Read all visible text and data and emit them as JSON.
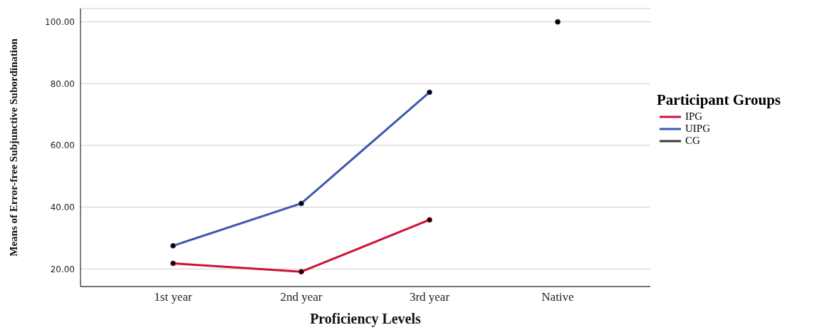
{
  "chart_data": {
    "type": "line",
    "xlabel": "Proficiency Levels",
    "ylabel": "Means of Error-free Subjunctive Subordination",
    "legend_title": "Participant Groups",
    "legend": "right",
    "grid": "y",
    "marker": "circle",
    "categories": [
      "1st year",
      "2nd year",
      "3rd year",
      "Native"
    ],
    "ylim": [
      14.3,
      104.3
    ],
    "yticks": [
      {
        "value": 20,
        "label": "20.00"
      },
      {
        "value": 40,
        "label": "40.00"
      },
      {
        "value": 60,
        "label": "60.00"
      },
      {
        "value": 80,
        "label": "80.00"
      },
      {
        "value": 100,
        "label": "100.00"
      }
    ],
    "series": [
      {
        "name": "IPG",
        "color": "#d0103a",
        "values": [
          21.8,
          19.1,
          35.9,
          null
        ]
      },
      {
        "name": "UIPG",
        "color": "#3e58ac",
        "values": [
          27.5,
          41.2,
          77.2,
          null
        ]
      },
      {
        "name": "CG",
        "color": "#3a3a3a",
        "values": [
          null,
          null,
          null,
          100
        ]
      }
    ]
  }
}
